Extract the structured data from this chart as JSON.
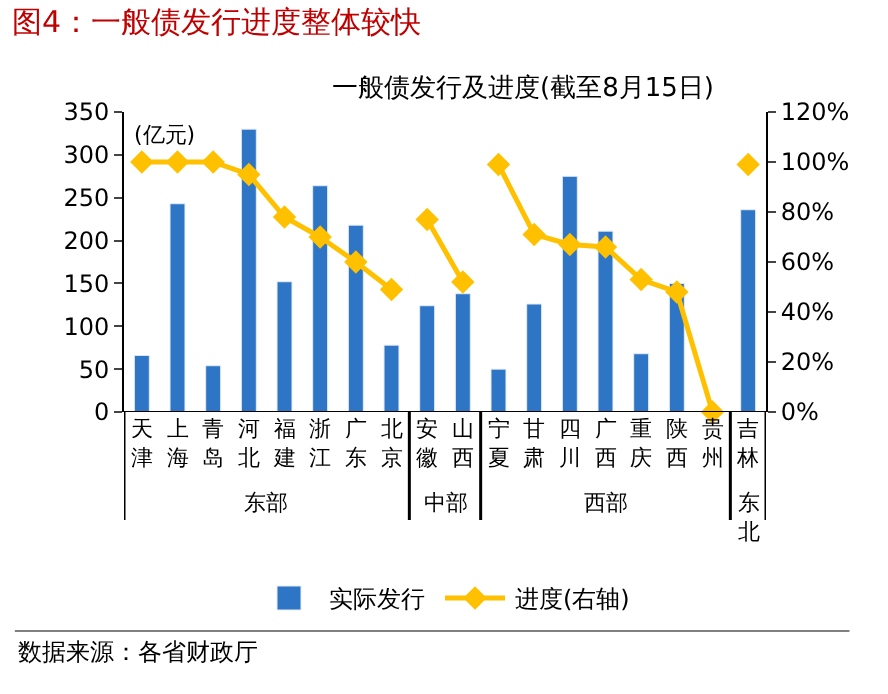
{
  "chart_data": {
    "type": "bar",
    "title": "图4：一般债发行进度整体较快",
    "subtitle": "一般债发行及进度(截至8月15日)",
    "ylabel": "(亿元)",
    "categories": [
      "天津",
      "上海",
      "青岛",
      "河北",
      "福建",
      "浙江",
      "广东",
      "北京",
      "安徽",
      "山西",
      "宁夏",
      "甘肃",
      "四川",
      "广西",
      "重庆",
      "陕西",
      "贵州",
      "吉林"
    ],
    "series": [
      {
        "name": "实际发行",
        "color": "#2e75c6",
        "values": [
          66,
          243,
          54,
          330,
          152,
          264,
          218,
          78,
          124,
          138,
          50,
          126,
          275,
          211,
          68,
          150,
          null,
          236
        ]
      },
      {
        "name": "进度(右轴)",
        "type": "line",
        "axis": "y2",
        "color": "#ffc000",
        "values": [
          100,
          100,
          100,
          95,
          78,
          70,
          60,
          49,
          null,
          null,
          null,
          null,
          null,
          null,
          null,
          null,
          null,
          null
        ]
      },
      {
        "type": "line",
        "axis": "y2",
        "color": "#ffc000",
        "values": [
          null,
          null,
          null,
          null,
          null,
          null,
          null,
          null,
          77,
          52,
          null,
          null,
          null,
          null,
          null,
          null,
          null,
          null
        ]
      },
      {
        "type": "line",
        "axis": "y2",
        "color": "#ffc000",
        "values": [
          null,
          null,
          null,
          null,
          null,
          null,
          null,
          null,
          null,
          null,
          99,
          71,
          67,
          66,
          53,
          48,
          0,
          null
        ]
      },
      {
        "type": "line",
        "axis": "y2",
        "color": "#ffc000",
        "values": [
          null,
          null,
          null,
          null,
          null,
          null,
          null,
          null,
          null,
          null,
          null,
          null,
          null,
          null,
          null,
          null,
          null,
          99
        ]
      }
    ],
    "ylim": [
      0,
      350
    ],
    "yticks": [
      0,
      50,
      100,
      150,
      200,
      250,
      300,
      350
    ],
    "y2lim": [
      0,
      120
    ],
    "y2ticks": [
      {
        "value": 0,
        "label": "0%"
      },
      {
        "value": 20,
        "label": "20%"
      },
      {
        "value": 40,
        "label": "40%"
      },
      {
        "value": 60,
        "label": "60%"
      },
      {
        "value": 80,
        "label": "80%"
      },
      {
        "value": 100,
        "label": "100%"
      },
      {
        "value": 120,
        "label": "120%"
      }
    ],
    "annotations": [
      "东部",
      "中部",
      "西部",
      "东北",
      "数据来源：各省财政厅"
    ],
    "marker": "diamond",
    "line_style": "solid",
    "legend": "bottom"
  }
}
